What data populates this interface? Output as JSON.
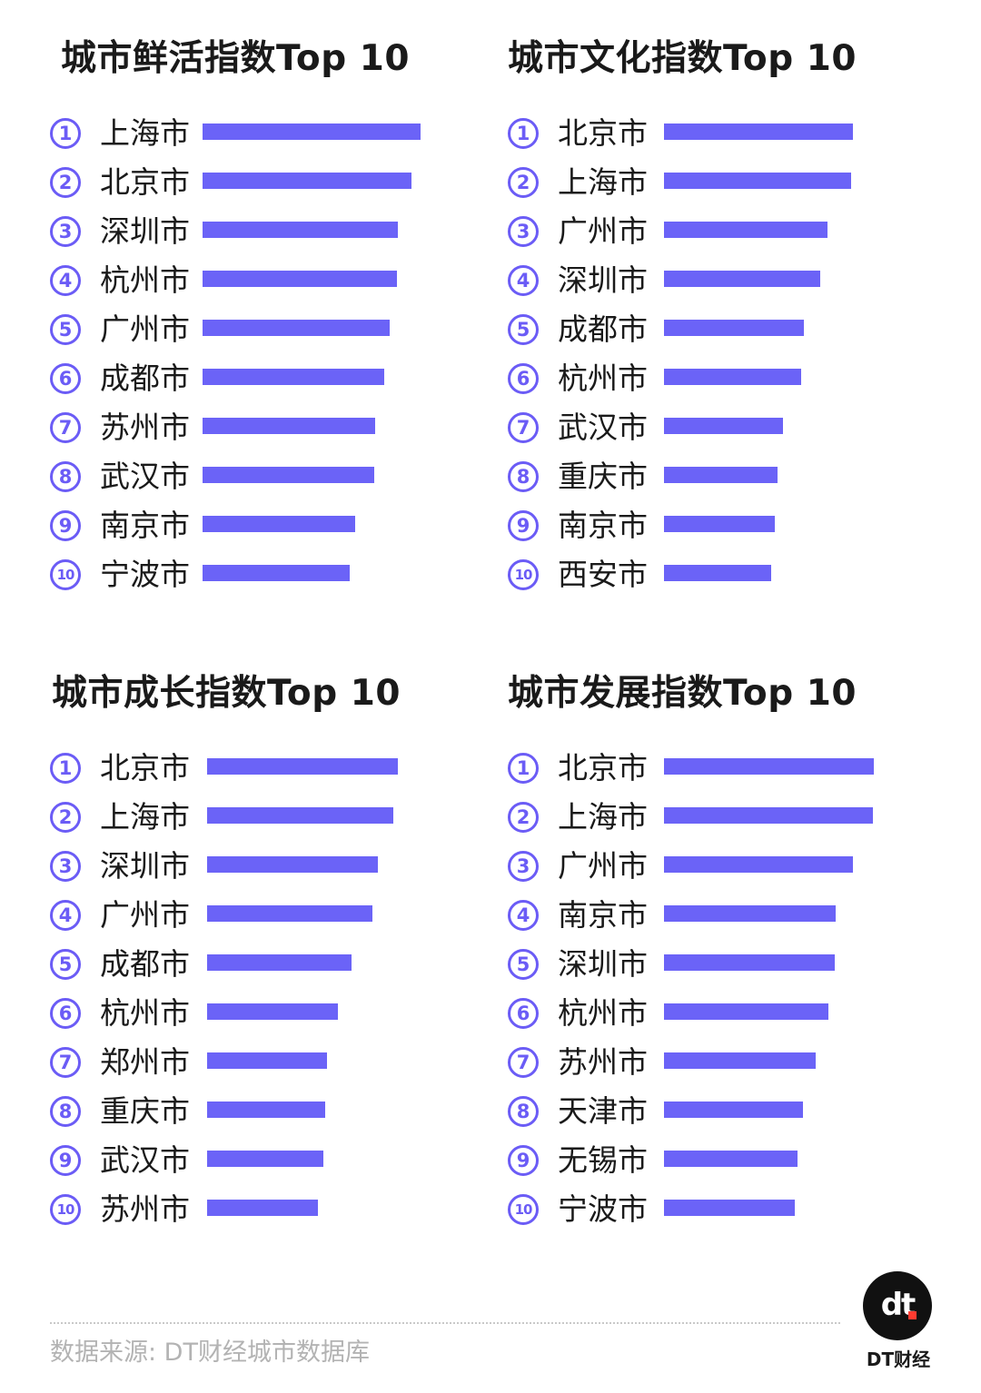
{
  "colors": {
    "bar": "#6b63f7",
    "rank_icon": "#6b5cf6",
    "source_text": "#b3b3b3"
  },
  "chart_data": [
    {
      "type": "bar",
      "orientation": "horizontal",
      "title": "城市鲜活指数Top 10",
      "ranks": [
        "①",
        "②",
        "③",
        "④",
        "⑤",
        "⑥",
        "⑦",
        "⑧",
        "⑨",
        "⑩"
      ],
      "categories": [
        "上海市",
        "北京市",
        "深圳市",
        "杭州市",
        "广州市",
        "成都市",
        "苏州市",
        "武汉市",
        "南京市",
        "宁波市"
      ],
      "values": [
        100,
        95.8,
        89.6,
        89.2,
        85.8,
        83.3,
        79.2,
        78.8,
        70,
        67.5
      ],
      "xlim": [
        0,
        100
      ]
    },
    {
      "type": "bar",
      "orientation": "horizontal",
      "title": "城市文化指数Top 10",
      "ranks": [
        "①",
        "②",
        "③",
        "④",
        "⑤",
        "⑥",
        "⑦",
        "⑧",
        "⑨",
        "⑩"
      ],
      "categories": [
        "北京市",
        "上海市",
        "广州市",
        "深圳市",
        "成都市",
        "杭州市",
        "武汉市",
        "重庆市",
        "南京市",
        "西安市"
      ],
      "values": [
        100,
        99,
        86.5,
        82.7,
        74,
        72.6,
        63,
        60.1,
        58.7,
        56.7
      ],
      "xlim": [
        0,
        100
      ]
    },
    {
      "type": "bar",
      "orientation": "horizontal",
      "title": "城市成长指数Top 10",
      "ranks": [
        "①",
        "②",
        "③",
        "④",
        "⑤",
        "⑥",
        "⑦",
        "⑧",
        "⑨",
        "⑩"
      ],
      "categories": [
        "北京市",
        "上海市",
        "深圳市",
        "广州市",
        "成都市",
        "杭州市",
        "郑州市",
        "重庆市",
        "武汉市",
        "苏州市"
      ],
      "values": [
        100,
        97.6,
        89.5,
        86.7,
        75.7,
        68.6,
        62.9,
        61.9,
        61,
        58.1
      ],
      "xlim": [
        0,
        100
      ]
    },
    {
      "type": "bar",
      "orientation": "horizontal",
      "title": "城市发展指数Top 10",
      "ranks": [
        "①",
        "②",
        "③",
        "④",
        "⑤",
        "⑥",
        "⑦",
        "⑧",
        "⑨",
        "⑩"
      ],
      "categories": [
        "北京市",
        "上海市",
        "广州市",
        "南京市",
        "深圳市",
        "杭州市",
        "苏州市",
        "天津市",
        "无锡市",
        "宁波市"
      ],
      "values": [
        100,
        99.6,
        90,
        82,
        81.4,
        78.4,
        72.3,
        66.2,
        63.6,
        62.3
      ],
      "xlim": [
        0,
        100
      ]
    }
  ],
  "footer": {
    "source": "数据来源: DT财经城市数据库",
    "logo_text": "dt",
    "brand": "DT财经"
  }
}
